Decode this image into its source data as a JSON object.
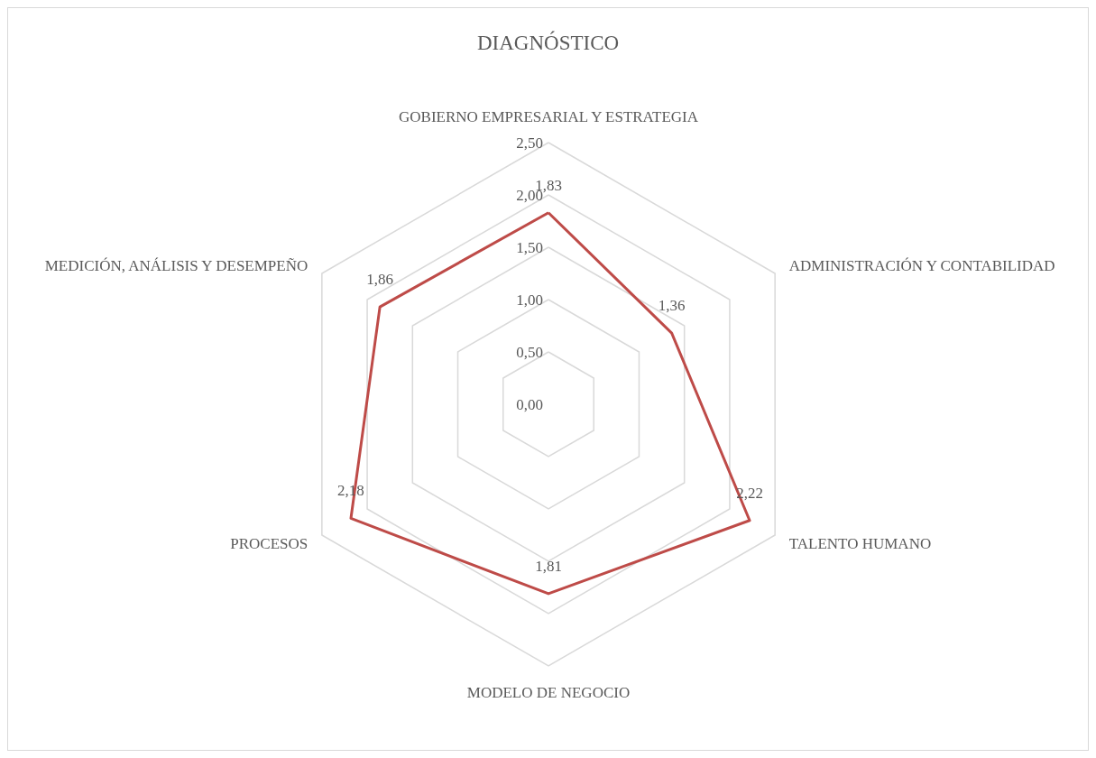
{
  "chart_data": {
    "type": "radar",
    "title": "DIAGNÓSTICO",
    "categories": [
      "GOBIERNO EMPRESARIAL Y ESTRATEGIA",
      "ADMINISTRACIÓN Y CONTABILIDAD",
      "TALENTO HUMANO",
      "MODELO DE NEGOCIO",
      "PROCESOS",
      "MEDICIÓN, ANÁLISIS Y DESEMPEÑO"
    ],
    "series": [
      {
        "color": "#be4b48",
        "values": [
          1.83,
          1.36,
          2.22,
          1.81,
          2.18,
          1.86
        ],
        "value_labels": [
          "1,83",
          "1,36",
          "2,22",
          "1,81",
          "2,18",
          "1,86"
        ]
      }
    ],
    "ylim": [
      0,
      2.5
    ],
    "yticks": [
      {
        "value": 0,
        "label": "0,00"
      },
      {
        "value": 0.5,
        "label": "0,50"
      },
      {
        "value": 1,
        "label": "1,00"
      },
      {
        "value": 1.5,
        "label": "1,50"
      },
      {
        "value": 2,
        "label": "2,00"
      },
      {
        "value": 2.5,
        "label": "2,50"
      }
    ],
    "grid": true,
    "marker": "none",
    "line_style": "solid"
  }
}
